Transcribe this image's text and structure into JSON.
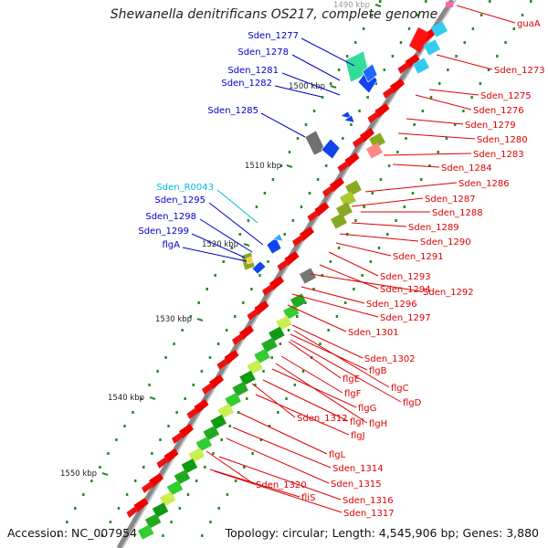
{
  "title": "Shewanella denitrificans OS217, complete genome",
  "footer": {
    "accession": "Accession: NC_007954",
    "summary": "Topology: circular; Length: 4,545,906 bp; Genes: 3,880"
  },
  "scale_labels": [
    "1490 kbp",
    "1500 kbp",
    "1510 kbp",
    "1520 kbp",
    "1530 kbp",
    "1540 kbp",
    "1550 kbp"
  ],
  "colors": {
    "left_label": "#0000cc",
    "rna_label": "#00bbdd",
    "right_label": "#dd0000",
    "backbone": "#888888"
  },
  "left_labels": [
    {
      "text": "Sden_1277",
      "kind": "gene"
    },
    {
      "text": "Sden_1278",
      "kind": "gene"
    },
    {
      "text": "Sden_1281",
      "kind": "gene"
    },
    {
      "text": "Sden_1282",
      "kind": "gene"
    },
    {
      "text": "Sden_1285",
      "kind": "gene"
    },
    {
      "text": "Sden_R0043",
      "kind": "rna"
    },
    {
      "text": "Sden_1295",
      "kind": "gene"
    },
    {
      "text": "Sden_1298",
      "kind": "gene"
    },
    {
      "text": "Sden_1299",
      "kind": "gene"
    },
    {
      "text": "flgA",
      "kind": "gene"
    }
  ],
  "right_labels": [
    "guaA",
    "Sden_1273",
    "Sden_1275",
    "Sden_1276",
    "Sden_1279",
    "Sden_1280",
    "Sden_1283",
    "Sden_1284",
    "Sden_1286",
    "Sden_1287",
    "Sden_1288",
    "Sden_1289",
    "Sden_1290",
    "Sden_1291",
    "Sden_1293",
    "Sden_1294",
    "Sden_1292",
    "Sden_1296",
    "Sden_1297",
    "Sden_1301",
    "Sden_1302",
    "flgB",
    "flgE",
    "flgC",
    "flgF",
    "flgD",
    "flgG",
    "Sden_1312",
    "flgI",
    "flgH",
    "flgJ",
    "flgL",
    "Sden_1314",
    "Sden_1315",
    "Sden_1320",
    "Sden_1316",
    "fliS",
    "Sden_1317"
  ]
}
